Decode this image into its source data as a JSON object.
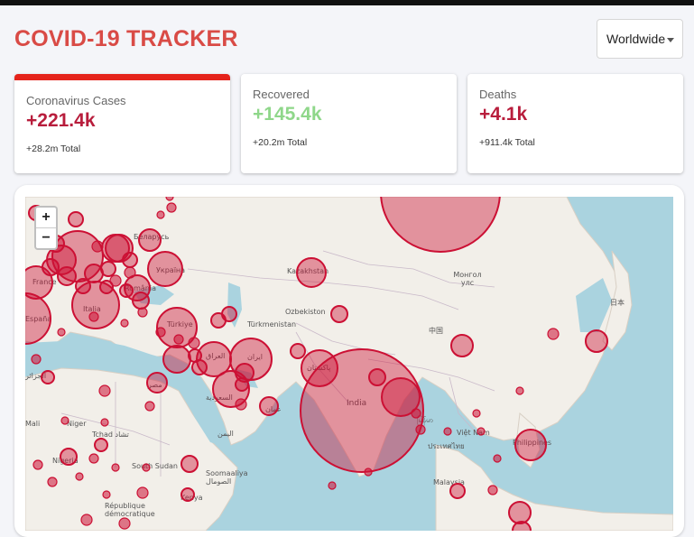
{
  "app": {
    "title": "COVID-19 TRACKER"
  },
  "country_select": {
    "value": "Worldwide"
  },
  "stats": [
    {
      "label": "Coronavirus Cases",
      "value": "+221.4k",
      "total": "+28.2m Total",
      "color": "#b81d3c",
      "selected": true
    },
    {
      "label": "Recovered",
      "value": "+145.4k",
      "total": "+20.2m Total",
      "color": "#8fd78a",
      "selected": false
    },
    {
      "label": "Deaths",
      "value": "+4.1k",
      "total": "+911.4k Total",
      "color": "#b81d3c",
      "selected": false
    }
  ],
  "map": {
    "zoom_in": "+",
    "zoom_out": "−",
    "labels": [
      "Беларусь",
      "France",
      "España",
      "Italia",
      "România",
      "Україна",
      "Türkiye",
      "Kazakhstan",
      "Монгол улс",
      "Ozbekiston",
      "Türkmenistan",
      "中国",
      "日本",
      "العراق",
      "ایران",
      "السعودية",
      "مصر",
      "الجزائر",
      "پاکستان",
      "India",
      "Mali",
      "Niger",
      "Tchad تشاد",
      "South Sudan",
      "Soomaaliya الصومال",
      "Việt Nam",
      "Philippines",
      "Malaysia",
      "République démocratique",
      "Kenya",
      "Nigeria",
      "اليمن",
      "عمان",
      "ประเทศไทย",
      "မြန်မာ"
    ],
    "bubble_color": "#cc1034"
  }
}
